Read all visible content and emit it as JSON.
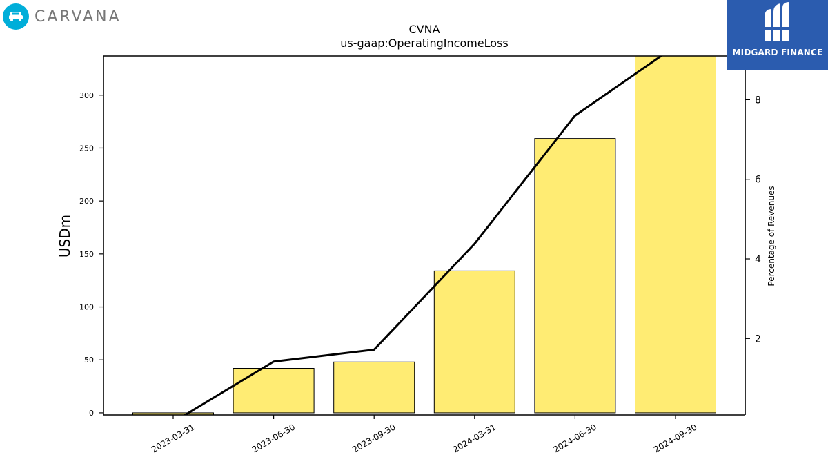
{
  "header": {
    "left_logo_text": "CARVANA",
    "left_logo_icon": "car-icon",
    "right_logo_text": "MIDGARD FINANCE",
    "right_logo_icon": "midgard-mark-icon"
  },
  "colors": {
    "bar_fill": "#ffec73",
    "bar_stroke": "#000000",
    "line": "#000000",
    "left_logo_circle": "#00aed9",
    "right_logo_bg": "#2b5caf"
  },
  "chart_data": {
    "type": "bar",
    "title": "CVNA",
    "subtitle": "us-gaap:OperatingIncomeLoss",
    "ylabel": "USDm",
    "y2label": "Percentage of Revenues",
    "categories": [
      "2023-03-31",
      "2023-06-30",
      "2023-09-30",
      "2024-03-31",
      "2024-06-30",
      "2024-09-30"
    ],
    "series": [
      {
        "kind": "bar",
        "axis": "left",
        "values": [
          -2,
          42,
          48,
          134,
          259,
          345
        ]
      },
      {
        "kind": "line",
        "axis": "right",
        "values": [
          -0.1,
          1.42,
          1.72,
          4.38,
          7.6,
          9.35
        ]
      }
    ],
    "ylim": [
      -2,
      337
    ],
    "y2lim": [
      0.08,
      9.1
    ],
    "yticks": [
      0,
      50,
      100,
      150,
      200,
      250,
      300
    ],
    "y2ticks": [
      2,
      4,
      6,
      8
    ],
    "grid": false,
    "legend": "none"
  }
}
